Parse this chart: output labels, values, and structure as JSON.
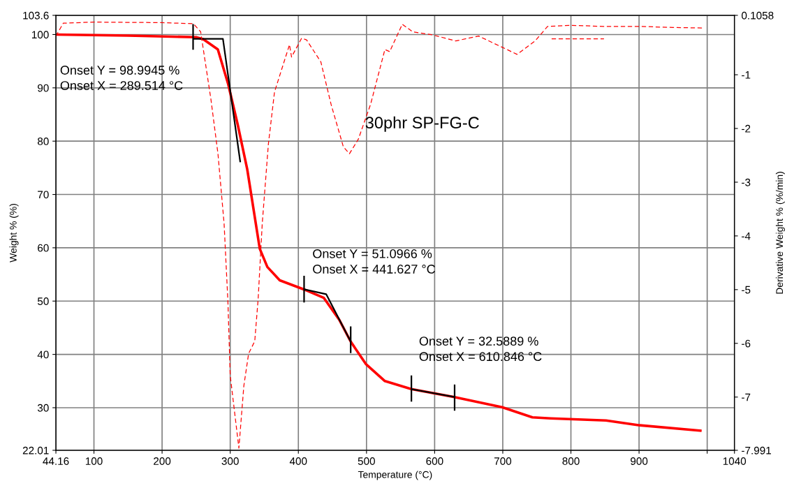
{
  "chart_data": {
    "type": "line",
    "title": "30phr SP-FG-C",
    "xlabel": "Temperature (°C)",
    "ylabel": "Weight % (%)",
    "y2label": "Derivative Weight % (%/min)",
    "xlim": [
      44.16,
      1040
    ],
    "xticks": [
      44.16,
      100,
      200,
      300,
      400,
      500,
      600,
      700,
      800,
      900,
      {
        "value": 1000,
        "label": null
      },
      1040
    ],
    "ylim": [
      22.01,
      103.6
    ],
    "yticks": [
      22.01,
      30,
      40,
      50,
      60,
      70,
      80,
      90,
      100,
      103.6
    ],
    "y2lim": [
      -7.991,
      0.1058
    ],
    "y2ticks": [
      -7.991,
      -7,
      -6,
      -5,
      -4,
      -3,
      -2,
      -1,
      0.1058
    ],
    "grid": true,
    "series": [
      {
        "color": "#ff0000",
        "line_style": "solid",
        "x": [
          44.16,
          150,
          250,
          260.6,
          281.8,
          297,
          311,
          325,
          343.4,
          354.5,
          372.7,
          408,
          437.4,
          460,
          476.8,
          499,
          527,
          565.7,
          629,
          699,
          743.4,
          770,
          851.5,
          901,
          990
        ],
        "values": [
          100,
          99.8,
          99.5,
          99.1,
          97.2,
          90.7,
          83.1,
          74.7,
          59.8,
          56.4,
          53.9,
          52.2,
          50.6,
          46.5,
          42.4,
          38.2,
          35.0,
          33.5,
          32.0,
          30.1,
          28.2,
          28.0,
          27.6,
          26.7,
          25.7
        ]
      },
      {
        "color": "#ff0000",
        "line_style": "dashed",
        "axis": "y2",
        "x": [
          44.16,
          55,
          100,
          200,
          246,
          256.6,
          271.7,
          282,
          291,
          296.6,
          300,
          312.7,
          320,
          327,
          336,
          341,
          347,
          356,
          365,
          387,
          390,
          404.8,
          412,
          433,
          448,
          466,
          475,
          488,
          506,
          527,
          534,
          552.5,
          567.7,
          597.7,
          631,
          664.6,
          721,
          747.5,
          765.7,
          800,
          848,
          900,
          950,
          994,
          null,
          771.7,
          848.5
        ],
        "values": [
          -0.28,
          -0.04,
          -0.02,
          -0.03,
          -0.05,
          -0.2,
          -1.46,
          -2.47,
          -3.77,
          -5.22,
          -6.6,
          -7.95,
          -6.79,
          -6.19,
          -5.96,
          -5.17,
          -3.77,
          -2.29,
          -1.32,
          -0.44,
          -0.67,
          -0.32,
          -0.35,
          -0.76,
          -1.55,
          -2.34,
          -2.47,
          -2.2,
          -1.55,
          -0.53,
          -0.57,
          -0.06,
          -0.2,
          -0.26,
          -0.37,
          -0.28,
          -0.62,
          -0.37,
          -0.1,
          -0.08,
          -0.1,
          -0.1,
          -0.12,
          -0.13,
          null,
          -0.33,
          -0.33
        ]
      },
      {
        "color": "#000000",
        "line_style": "solid",
        "x": [
          245.5,
          245.5,
          null,
          245.5,
          289.3,
          314.6,
          null,
          408.4,
          408.4,
          null,
          408.4,
          440.8,
          476.8,
          null,
          476.8,
          476.8,
          null,
          565.9,
          565.9,
          null,
          565.9,
          629.3,
          null,
          629.3,
          629.3
        ],
        "values": [
          101.8,
          97.3,
          null,
          99.2,
          99.2,
          76.2,
          null,
          54.6,
          49.9,
          null,
          52.2,
          51.3,
          42.4,
          null,
          45.1,
          40.4,
          null,
          35.9,
          31.3,
          null,
          33.5,
          32.0,
          null,
          34.2,
          29.6
        ]
      }
    ],
    "annotations": [
      "Onset Y = 98.9945 %\nOnset X = 289.514 °C",
      "Onset Y = 51.0966 %\nOnset X = 441.627 °C",
      "Onset Y = 32.5889 %\nOnset X = 610.846 °C"
    ]
  }
}
